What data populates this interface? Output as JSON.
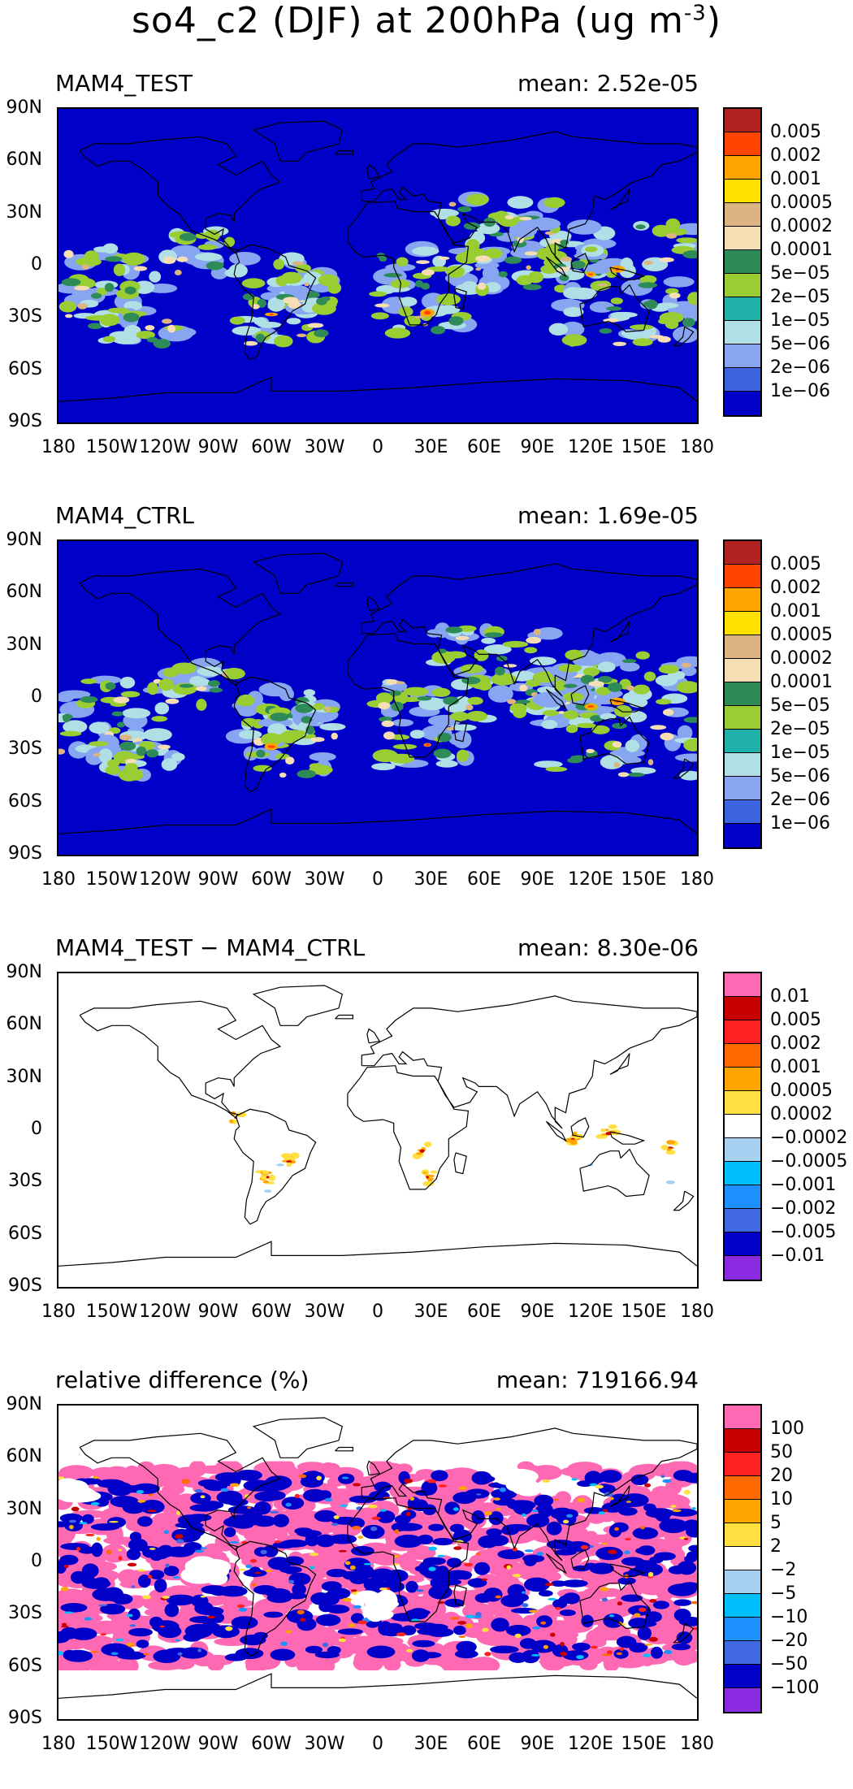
{
  "title": "so4_c2 (DJF) at 200hPa (ug m",
  "title_sup": "-3",
  "title_close": ")",
  "lat_labels": [
    "90N",
    "60N",
    "30N",
    "0",
    "30S",
    "60S",
    "90S"
  ],
  "lon_labels": [
    "180",
    "150W",
    "120W",
    "90W",
    "60W",
    "30W",
    "0",
    "30E",
    "60E",
    "90E",
    "120E",
    "150E",
    "180"
  ],
  "panels": [
    {
      "title": "MAM4_TEST",
      "mean": "mean: 2.52e-05",
      "type": "abs",
      "colorbar": {
        "colors": [
          "#b22222",
          "#ff4500",
          "#ffa500",
          "#ffe000",
          "#dcb482",
          "#f5deb3",
          "#2e8b57",
          "#9acd32",
          "#20b2aa",
          "#b0e0e6",
          "#87a5f0",
          "#3c64e1",
          "#0000c8"
        ],
        "labels": [
          "0.005",
          "0.002",
          "0.001",
          "0.0005",
          "0.0002",
          "0.0001",
          "5e−05",
          "2e−05",
          "1e−05",
          "5e−06",
          "2e−06",
          "1e−06"
        ]
      }
    },
    {
      "title": "MAM4_CTRL",
      "mean": "mean: 1.69e-05",
      "type": "abs",
      "colorbar": {
        "colors": [
          "#b22222",
          "#ff4500",
          "#ffa500",
          "#ffe000",
          "#dcb482",
          "#f5deb3",
          "#2e8b57",
          "#9acd32",
          "#20b2aa",
          "#b0e0e6",
          "#87a5f0",
          "#3c64e1",
          "#0000c8"
        ],
        "labels": [
          "0.005",
          "0.002",
          "0.001",
          "0.0005",
          "0.0002",
          "0.0001",
          "5e−05",
          "2e−05",
          "1e−05",
          "5e−06",
          "2e−06",
          "1e−06"
        ]
      }
    },
    {
      "title": "MAM4_TEST − MAM4_CTRL",
      "mean": "mean: 8.30e-06",
      "type": "diff",
      "colorbar": {
        "colors": [
          "#ff69b4",
          "#c80000",
          "#ff2020",
          "#ff6a00",
          "#ffa500",
          "#ffe040",
          "#ffffff",
          "#a8d0f0",
          "#00bfff",
          "#1e90ff",
          "#4169e1",
          "#0000c8",
          "#8a2be2"
        ],
        "labels": [
          "0.01",
          "0.005",
          "0.002",
          "0.001",
          "0.0005",
          "0.0002",
          "−0.0002",
          "−0.0005",
          "−0.001",
          "−0.002",
          "−0.005",
          "−0.01"
        ]
      }
    },
    {
      "title": "relative difference (%)",
      "mean": "mean: 719166.94",
      "type": "rel",
      "colorbar": {
        "colors": [
          "#ff69b4",
          "#c80000",
          "#ff2020",
          "#ff6a00",
          "#ffa500",
          "#ffe040",
          "#ffffff",
          "#a8d0f0",
          "#00bfff",
          "#1e90ff",
          "#4169e1",
          "#0000c8",
          "#8a2be2"
        ],
        "labels": [
          "100",
          "50",
          "20",
          "10",
          "5",
          "2",
          "−2",
          "−5",
          "−10",
          "−20",
          "−50",
          "−100"
        ]
      }
    }
  ]
}
